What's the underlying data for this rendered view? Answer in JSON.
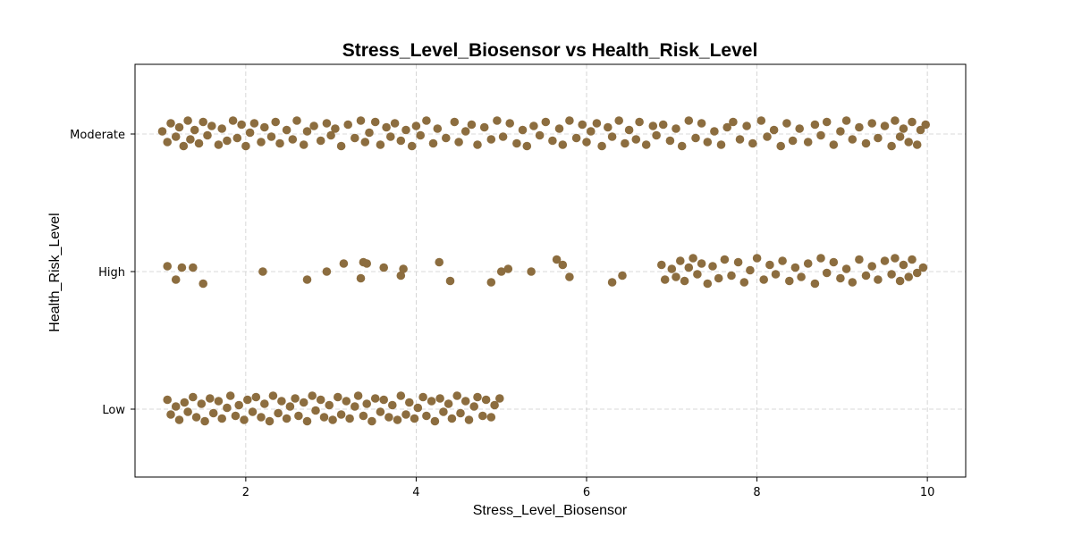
{
  "chart_data": {
    "type": "scatter",
    "title": "Stress_Level_Biosensor vs Health_Risk_Level",
    "xlabel": "Stress_Level_Biosensor",
    "ylabel": "Health_Risk_Level",
    "x_ticks": [
      2,
      4,
      6,
      8,
      10
    ],
    "xlim": [
      0.7,
      10.45
    ],
    "y_categories": [
      "Low",
      "High",
      "Moderate"
    ],
    "grid": true,
    "marker_color": "#8c6d3f",
    "series": [
      {
        "category": "Moderate",
        "x": [
          1.02,
          1.08,
          1.12,
          1.18,
          1.22,
          1.27,
          1.32,
          1.35,
          1.4,
          1.45,
          1.5,
          1.55,
          1.6,
          1.68,
          1.72,
          1.78,
          1.85,
          1.9,
          1.95,
          2.0,
          2.05,
          2.1,
          2.18,
          2.22,
          2.3,
          2.35,
          2.4,
          2.48,
          2.55,
          2.6,
          2.68,
          2.72,
          2.8,
          2.88,
          2.95,
          3.0,
          3.05,
          3.12,
          3.2,
          3.28,
          3.35,
          3.4,
          3.45,
          3.52,
          3.58,
          3.65,
          3.7,
          3.75,
          3.82,
          3.88,
          3.95,
          4.0,
          4.05,
          4.12,
          4.2,
          4.25,
          4.35,
          4.45,
          4.5,
          4.58,
          4.65,
          4.72,
          4.8,
          4.88,
          4.95,
          5.02,
          5.1,
          5.18,
          5.25,
          5.3,
          5.38,
          5.45,
          5.52,
          5.6,
          5.68,
          5.72,
          5.8,
          5.88,
          5.95,
          6.0,
          6.05,
          6.12,
          6.18,
          6.25,
          6.3,
          6.38,
          6.45,
          6.5,
          6.58,
          6.62,
          6.7,
          6.78,
          6.82,
          6.9,
          6.98,
          7.05,
          7.12,
          7.2,
          7.28,
          7.35,
          7.42,
          7.5,
          7.58,
          7.65,
          7.72,
          7.8,
          7.88,
          7.95,
          8.05,
          8.12,
          8.2,
          8.28,
          8.35,
          8.42,
          8.5,
          8.6,
          8.68,
          8.75,
          8.82,
          8.9,
          8.98,
          9.05,
          9.12,
          9.2,
          9.28,
          9.35,
          9.42,
          9.5,
          9.58,
          9.62,
          9.68,
          9.72,
          9.78,
          9.82,
          9.88,
          9.92,
          9.98
        ],
        "jitter": [
          0.02,
          -0.06,
          0.08,
          -0.02,
          0.05,
          -0.09,
          0.1,
          -0.04,
          0.03,
          -0.07,
          0.09,
          -0.01,
          0.06,
          -0.08,
          0.04,
          -0.05,
          0.1,
          -0.03,
          0.07,
          -0.09,
          0.01,
          0.08,
          -0.06,
          0.05,
          -0.02,
          0.09,
          -0.07,
          0.03,
          -0.04,
          0.1,
          -0.08,
          0.02,
          0.06,
          -0.05,
          0.08,
          -0.01,
          0.04,
          -0.09,
          0.07,
          -0.03,
          0.1,
          -0.06,
          0.01,
          0.09,
          -0.08,
          0.05,
          -0.02,
          0.08,
          -0.05,
          0.03,
          -0.09,
          0.06,
          -0.01,
          0.1,
          -0.07,
          0.04,
          -0.03,
          0.09,
          -0.06,
          0.02,
          0.07,
          -0.08,
          0.05,
          -0.04,
          0.1,
          -0.02,
          0.08,
          -0.07,
          0.03,
          -0.09,
          0.06,
          -0.01,
          0.09,
          -0.05,
          0.04,
          -0.08,
          0.1,
          -0.03,
          0.07,
          -0.06,
          0.02,
          0.08,
          -0.09,
          0.05,
          -0.02,
          0.1,
          -0.07,
          0.03,
          -0.04,
          0.09,
          -0.08,
          0.06,
          -0.01,
          0.07,
          -0.05,
          0.04,
          -0.09,
          0.1,
          -0.03,
          0.08,
          -0.06,
          0.02,
          -0.08,
          0.05,
          0.09,
          -0.04,
          0.06,
          -0.07,
          0.1,
          -0.02,
          0.03,
          -0.09,
          0.08,
          -0.05,
          0.04,
          -0.06,
          0.07,
          -0.01,
          0.09,
          -0.08,
          0.02,
          0.1,
          -0.04,
          0.05,
          -0.07,
          0.08,
          -0.03,
          0.06,
          -0.09,
          0.1,
          -0.02,
          0.04,
          -0.06,
          0.09,
          -0.08,
          0.03,
          0.07
        ]
      },
      {
        "category": "High",
        "x": [
          1.08,
          1.18,
          1.25,
          1.38,
          1.5,
          2.2,
          2.72,
          2.95,
          3.15,
          3.35,
          3.38,
          3.42,
          3.62,
          3.82,
          3.85,
          4.27,
          4.4,
          4.88,
          5.0,
          5.08,
          5.35,
          5.65,
          5.72,
          5.8,
          6.3,
          6.42,
          6.88,
          6.92,
          7.0,
          7.05,
          7.1,
          7.15,
          7.2,
          7.25,
          7.3,
          7.35,
          7.42,
          7.48,
          7.55,
          7.62,
          7.7,
          7.78,
          7.85,
          7.92,
          8.0,
          8.08,
          8.15,
          8.22,
          8.3,
          8.38,
          8.45,
          8.52,
          8.6,
          8.68,
          8.75,
          8.82,
          8.9,
          8.98,
          9.05,
          9.12,
          9.2,
          9.28,
          9.35,
          9.42,
          9.5,
          9.58,
          9.62,
          9.68,
          9.72,
          9.78,
          9.82,
          9.88,
          9.95
        ],
        "jitter": [
          0.04,
          -0.06,
          0.03,
          0.03,
          -0.09,
          0.0,
          -0.06,
          0.0,
          0.06,
          -0.05,
          0.07,
          0.06,
          0.03,
          -0.03,
          0.02,
          0.07,
          -0.07,
          -0.08,
          0.0,
          0.02,
          0.0,
          0.09,
          0.05,
          -0.04,
          -0.08,
          -0.03,
          0.05,
          -0.06,
          0.02,
          -0.04,
          0.08,
          -0.07,
          0.03,
          0.1,
          -0.02,
          0.06,
          -0.09,
          0.04,
          -0.05,
          0.09,
          -0.03,
          0.07,
          -0.08,
          0.01,
          0.1,
          -0.06,
          0.05,
          -0.02,
          0.08,
          -0.07,
          0.03,
          -0.04,
          0.06,
          -0.09,
          0.1,
          -0.01,
          0.07,
          -0.05,
          0.02,
          -0.08,
          0.09,
          -0.03,
          0.04,
          -0.06,
          0.08,
          -0.02,
          0.1,
          -0.07,
          0.05,
          -0.04,
          0.09,
          -0.01,
          0.03
        ]
      },
      {
        "category": "Low",
        "x": [
          1.08,
          1.12,
          1.18,
          1.22,
          1.28,
          1.32,
          1.38,
          1.42,
          1.48,
          1.52,
          1.58,
          1.62,
          1.68,
          1.72,
          1.78,
          1.82,
          1.88,
          1.92,
          1.98,
          2.02,
          2.08,
          2.12,
          2.18,
          2.22,
          2.28,
          2.32,
          2.38,
          2.42,
          2.48,
          2.52,
          2.58,
          2.62,
          2.68,
          2.72,
          2.78,
          2.82,
          2.88,
          2.92,
          2.98,
          3.02,
          3.08,
          3.12,
          3.18,
          3.22,
          3.28,
          3.32,
          3.38,
          3.42,
          3.48,
          3.52,
          3.58,
          3.62,
          3.68,
          3.72,
          3.78,
          3.82,
          3.88,
          3.92,
          3.98,
          4.02,
          4.08,
          4.12,
          4.18,
          4.22,
          4.28,
          4.32,
          4.38,
          4.42,
          4.48,
          4.52,
          4.58,
          4.62,
          4.68,
          4.72,
          4.78,
          4.82,
          4.88,
          4.92,
          4.98
        ],
        "jitter": [
          0.07,
          -0.04,
          0.02,
          -0.08,
          0.05,
          -0.02,
          0.09,
          -0.06,
          0.04,
          -0.09,
          0.08,
          -0.03,
          0.06,
          -0.07,
          0.01,
          0.1,
          -0.05,
          0.03,
          -0.08,
          0.07,
          -0.02,
          0.09,
          -0.06,
          0.04,
          -0.09,
          0.1,
          -0.03,
          0.06,
          -0.07,
          0.02,
          0.08,
          -0.05,
          0.05,
          -0.09,
          0.1,
          -0.01,
          0.07,
          -0.06,
          0.03,
          -0.08,
          0.09,
          -0.04,
          0.06,
          -0.07,
          0.02,
          0.1,
          -0.05,
          0.04,
          -0.09,
          0.08,
          -0.02,
          0.07,
          -0.06,
          0.03,
          -0.08,
          0.1,
          -0.04,
          0.05,
          -0.07,
          0.01,
          0.09,
          -0.05,
          0.06,
          -0.09,
          0.08,
          -0.02,
          0.04,
          -0.07,
          0.1,
          -0.03,
          0.06,
          -0.08,
          0.02,
          0.09,
          -0.05,
          0.07,
          -0.06,
          0.03,
          0.08
        ]
      }
    ]
  }
}
